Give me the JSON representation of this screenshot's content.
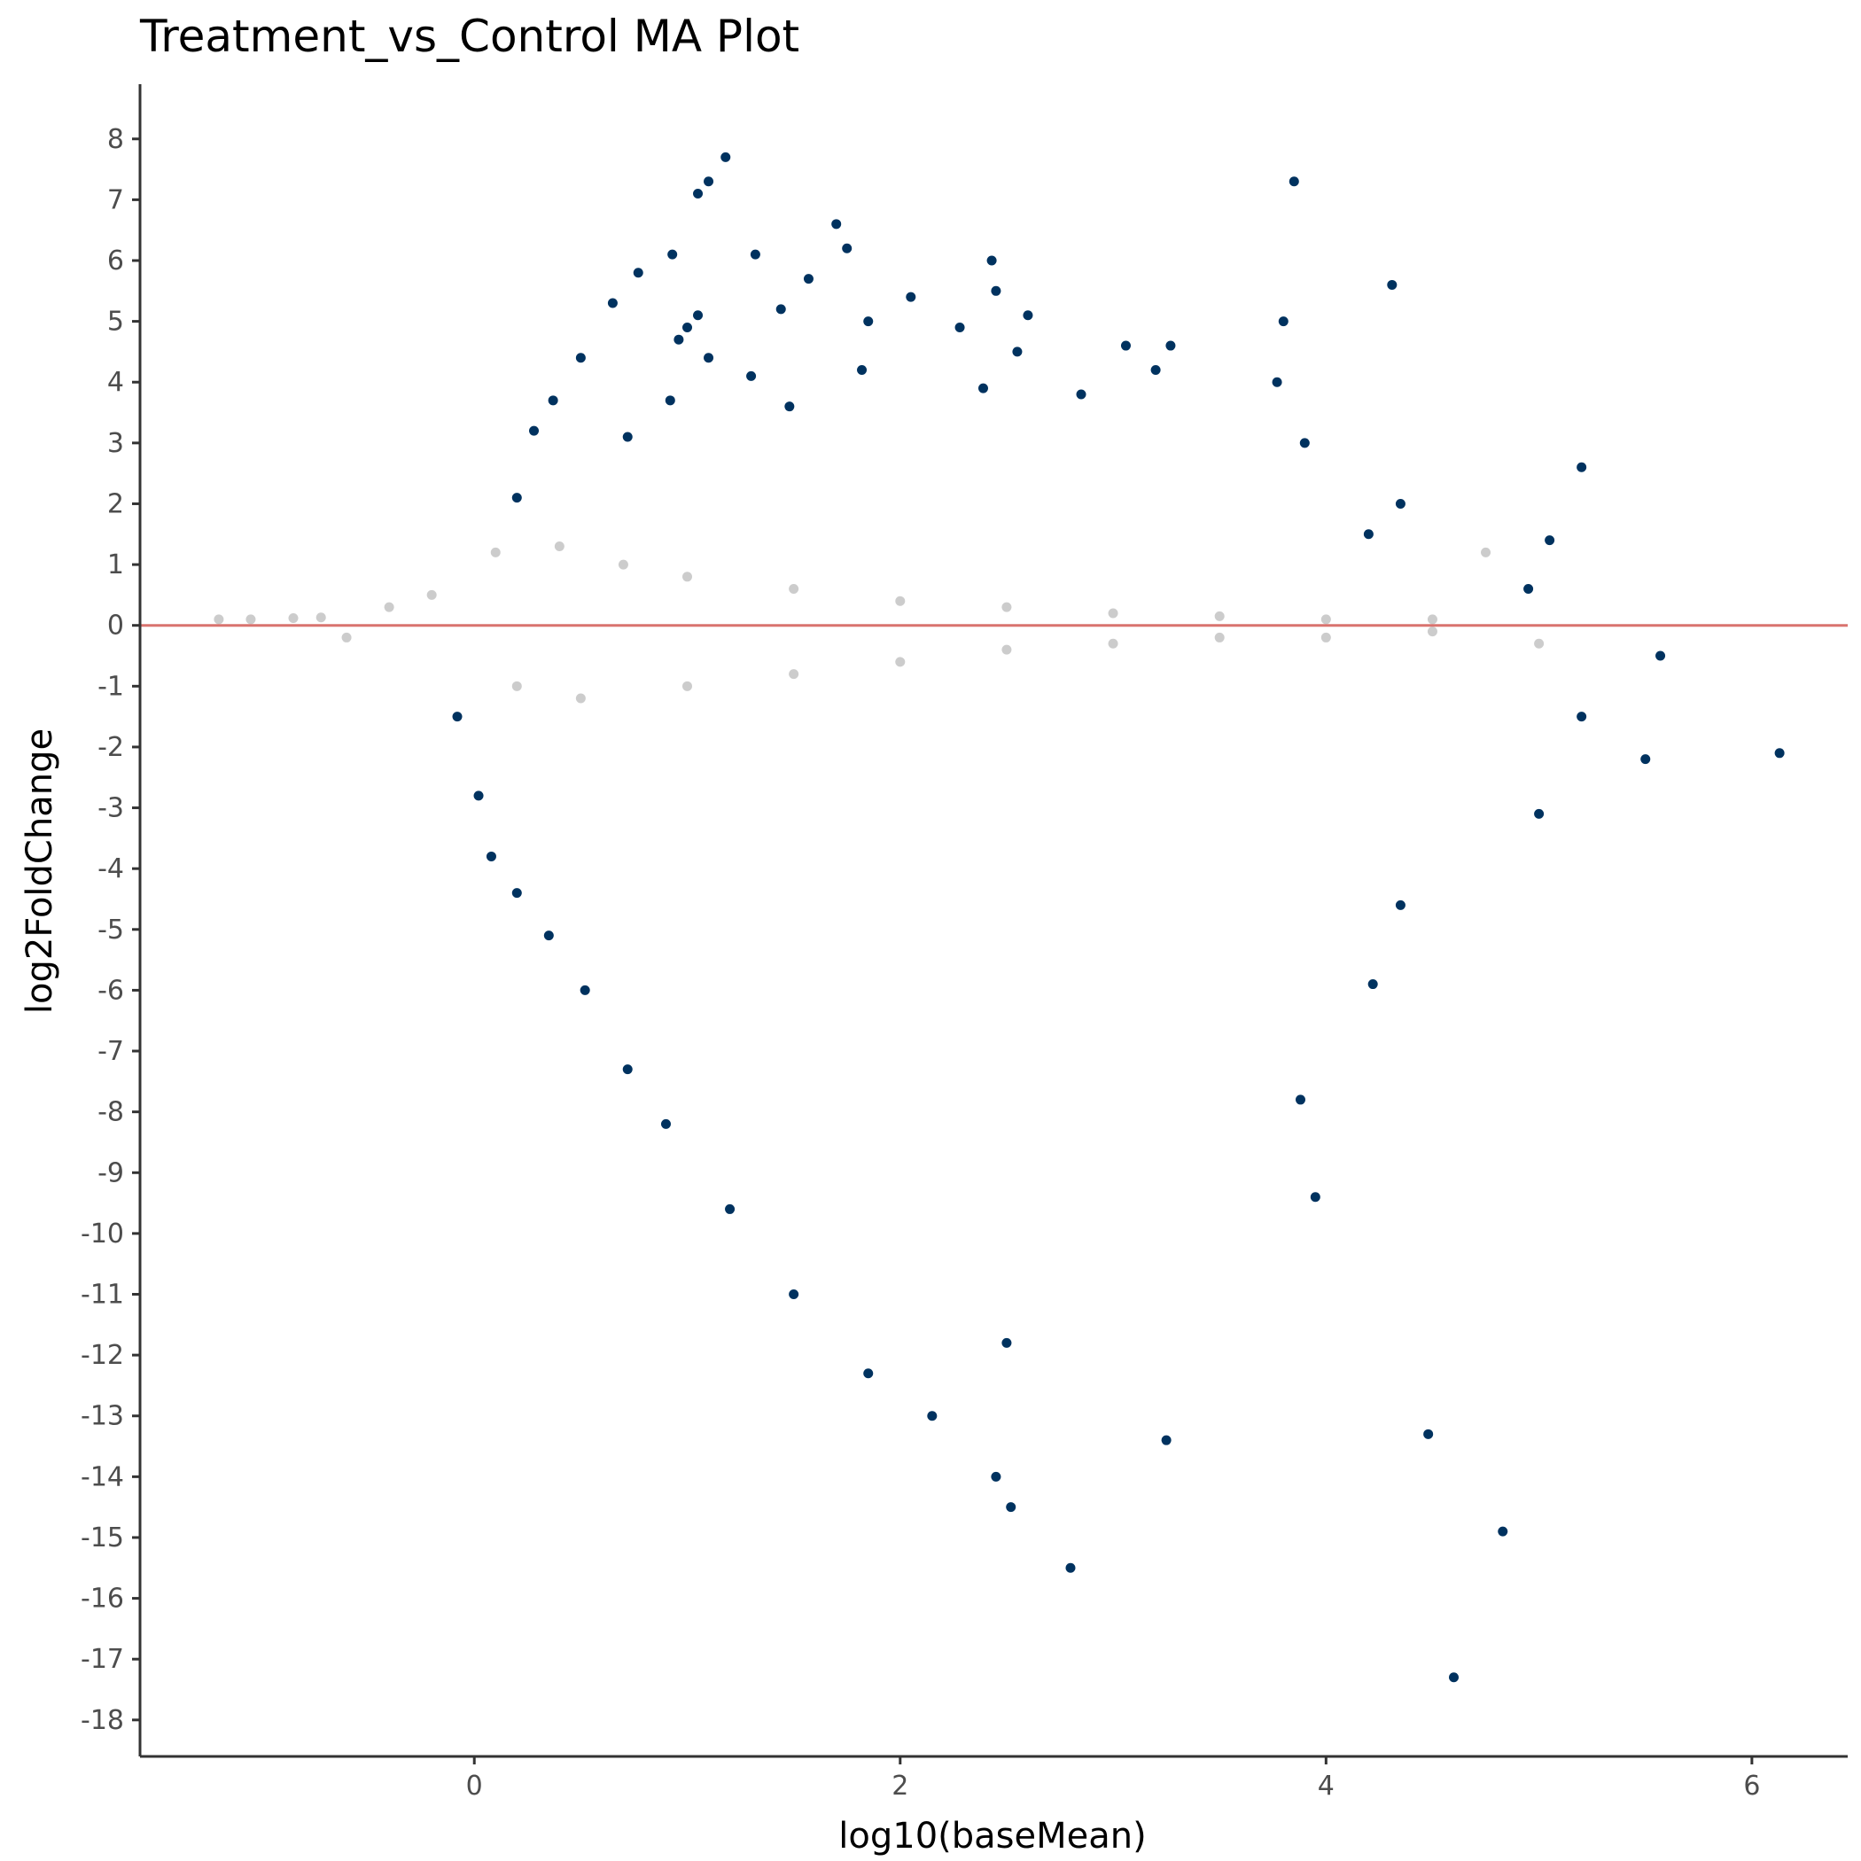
{
  "chart_data": {
    "type": "scatter",
    "title": "Treatment_vs_Control MA Plot",
    "xlabel": "log10(baseMean)",
    "ylabel": "log2FoldChange",
    "xlim": [
      -1.57,
      6.45
    ],
    "ylim": [
      -18.6,
      8.9
    ],
    "x_ticks": [
      0,
      2,
      4,
      6
    ],
    "y_ticks": [
      8,
      7,
      6,
      5,
      4,
      3,
      2,
      1,
      0,
      -1,
      -2,
      -3,
      -4,
      -5,
      -6,
      -7,
      -8,
      -9,
      -10,
      -11,
      -12,
      -13,
      -14,
      -15,
      -16,
      -17,
      -18
    ],
    "grid": false,
    "legend": "none",
    "reference_line": {
      "y": 0,
      "color": "#d9736f"
    },
    "colors": {
      "significant": "#00325f",
      "not_significant": "#cccccc"
    },
    "series": [
      {
        "key": "significant",
        "points": [
          [
            1.18,
            7.7
          ],
          [
            1.05,
            7.1
          ],
          [
            1.1,
            7.3
          ],
          [
            3.85,
            7.3
          ],
          [
            1.7,
            6.6
          ],
          [
            1.75,
            6.2
          ],
          [
            0.93,
            6.1
          ],
          [
            1.32,
            6.1
          ],
          [
            2.43,
            6.0
          ],
          [
            0.77,
            5.8
          ],
          [
            1.57,
            5.7
          ],
          [
            2.45,
            5.5
          ],
          [
            4.31,
            5.6
          ],
          [
            2.05,
            5.4
          ],
          [
            0.65,
            5.3
          ],
          [
            1.44,
            5.2
          ],
          [
            2.6,
            5.1
          ],
          [
            1.05,
            5.1
          ],
          [
            3.8,
            5.0
          ],
          [
            1.85,
            5.0
          ],
          [
            1.0,
            4.9
          ],
          [
            2.28,
            4.9
          ],
          [
            0.96,
            4.7
          ],
          [
            3.06,
            4.6
          ],
          [
            3.27,
            4.6
          ],
          [
            2.55,
            4.5
          ],
          [
            0.5,
            4.4
          ],
          [
            1.1,
            4.4
          ],
          [
            1.82,
            4.2
          ],
          [
            3.2,
            4.2
          ],
          [
            1.3,
            4.1
          ],
          [
            3.77,
            4.0
          ],
          [
            0.37,
            3.7
          ],
          [
            2.39,
            3.9
          ],
          [
            0.92,
            3.7
          ],
          [
            2.85,
            3.8
          ],
          [
            1.48,
            3.6
          ],
          [
            0.28,
            3.2
          ],
          [
            0.72,
            3.1
          ],
          [
            3.9,
            3.0
          ],
          [
            5.2,
            2.6
          ],
          [
            0.2,
            2.1
          ],
          [
            4.35,
            2.0
          ],
          [
            4.2,
            1.5
          ],
          [
            5.05,
            1.4
          ],
          [
            4.95,
            0.6
          ],
          [
            -0.08,
            -1.5
          ],
          [
            0.02,
            -2.8
          ],
          [
            0.08,
            -3.8
          ],
          [
            0.2,
            -4.4
          ],
          [
            0.35,
            -5.1
          ],
          [
            0.52,
            -6.0
          ],
          [
            0.72,
            -7.3
          ],
          [
            0.9,
            -8.2
          ],
          [
            1.2,
            -9.6
          ],
          [
            1.5,
            -11.0
          ],
          [
            1.85,
            -12.3
          ],
          [
            2.15,
            -13.0
          ],
          [
            2.45,
            -14.0
          ],
          [
            2.52,
            -14.5
          ],
          [
            2.8,
            -15.5
          ],
          [
            4.6,
            -17.3
          ],
          [
            4.83,
            -14.9
          ],
          [
            4.48,
            -13.3
          ],
          [
            3.25,
            -13.4
          ],
          [
            2.5,
            -11.8
          ],
          [
            3.95,
            -9.4
          ],
          [
            3.88,
            -7.8
          ],
          [
            4.22,
            -5.9
          ],
          [
            4.35,
            -4.6
          ],
          [
            5.5,
            -2.2
          ],
          [
            6.13,
            -2.1
          ],
          [
            5.57,
            -0.5
          ],
          [
            5.2,
            -1.5
          ],
          [
            5.0,
            -3.1
          ]
        ]
      },
      {
        "key": "not_significant",
        "points": [
          [
            -1.2,
            0.1
          ],
          [
            -1.05,
            0.1
          ],
          [
            -0.85,
            0.12
          ],
          [
            -0.72,
            0.13
          ],
          [
            -0.6,
            -0.2
          ],
          [
            -0.4,
            0.3
          ],
          [
            -0.2,
            0.5
          ],
          [
            0.1,
            1.2
          ],
          [
            0.4,
            1.3
          ],
          [
            0.7,
            1.0
          ],
          [
            1.0,
            0.8
          ],
          [
            1.5,
            0.6
          ],
          [
            2.0,
            0.4
          ],
          [
            2.5,
            0.3
          ],
          [
            3.0,
            0.2
          ],
          [
            3.5,
            0.15
          ],
          [
            4.0,
            0.1
          ],
          [
            4.5,
            0.1
          ],
          [
            4.75,
            1.2
          ],
          [
            0.2,
            -1.0
          ],
          [
            0.5,
            -1.2
          ],
          [
            1.0,
            -1.0
          ],
          [
            1.5,
            -0.8
          ],
          [
            2.0,
            -0.6
          ],
          [
            2.5,
            -0.4
          ],
          [
            3.0,
            -0.3
          ],
          [
            3.5,
            -0.2
          ],
          [
            4.0,
            -0.2
          ],
          [
            4.5,
            -0.1
          ],
          [
            5.0,
            -0.3
          ]
        ]
      }
    ]
  }
}
